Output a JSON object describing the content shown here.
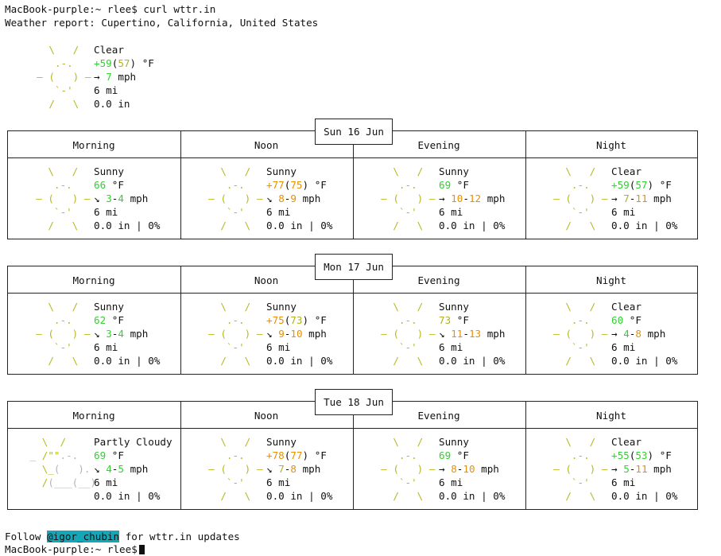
{
  "terminal": {
    "prompt": "MacBook-purple:~ rlee$",
    "command": "curl wttr.in",
    "report_header": "Weather report: Cupertino, California, United States"
  },
  "current": {
    "condition": "Clear",
    "temp_main": "+59",
    "temp_feels": "57",
    "temp_unit": "°F",
    "wind_dir": "→",
    "wind": "7",
    "wind_unit": "mph",
    "visibility": "6 mi",
    "precip": "0.0 in"
  },
  "period_labels": [
    "Morning",
    "Noon",
    "Evening",
    "Night"
  ],
  "forecast": [
    {
      "date": "Sun 16 Jun",
      "periods": [
        {
          "icon": "sunny",
          "condition": "Sunny",
          "temp_main": "66",
          "temp_feels": "",
          "temp_unit": "°F",
          "wind_dir": "↘",
          "wind_low": "3",
          "wind_high": "4",
          "wind_unit": "mph",
          "visibility": "6 mi",
          "precip": "0.0 in | 0%"
        },
        {
          "icon": "sunny",
          "condition": "Sunny",
          "temp_main": "+77",
          "temp_feels": "75",
          "temp_unit": "°F",
          "wind_dir": "↘",
          "wind_low": "8",
          "wind_high": "9",
          "wind_unit": "mph",
          "visibility": "6 mi",
          "precip": "0.0 in | 0%"
        },
        {
          "icon": "sunny",
          "condition": "Sunny",
          "temp_main": "69",
          "temp_feels": "",
          "temp_unit": "°F",
          "wind_dir": "→",
          "wind_low": "10",
          "wind_high": "12",
          "wind_unit": "mph",
          "visibility": "6 mi",
          "precip": "0.0 in | 0%"
        },
        {
          "icon": "clear",
          "condition": "Clear",
          "temp_main": "+59",
          "temp_feels": "57",
          "temp_unit": "°F",
          "wind_dir": "→",
          "wind_low": "7",
          "wind_high": "11",
          "wind_unit": "mph",
          "visibility": "6 mi",
          "precip": "0.0 in | 0%"
        }
      ]
    },
    {
      "date": "Mon 17 Jun",
      "periods": [
        {
          "icon": "sunny",
          "condition": "Sunny",
          "temp_main": "62",
          "temp_feels": "",
          "temp_unit": "°F",
          "wind_dir": "↘",
          "wind_low": "3",
          "wind_high": "4",
          "wind_unit": "mph",
          "visibility": "6 mi",
          "precip": "0.0 in | 0%"
        },
        {
          "icon": "sunny",
          "condition": "Sunny",
          "temp_main": "+75",
          "temp_feels": "73",
          "temp_unit": "°F",
          "wind_dir": "↘",
          "wind_low": "9",
          "wind_high": "10",
          "wind_unit": "mph",
          "visibility": "6 mi",
          "precip": "0.0 in | 0%"
        },
        {
          "icon": "sunny",
          "condition": "Sunny",
          "temp_main": "73",
          "temp_feels": "",
          "temp_unit": "°F",
          "wind_dir": "↘",
          "wind_low": "11",
          "wind_high": "13",
          "wind_unit": "mph",
          "visibility": "6 mi",
          "precip": "0.0 in | 0%"
        },
        {
          "icon": "clear",
          "condition": "Clear",
          "temp_main": "60",
          "temp_feels": "",
          "temp_unit": "°F",
          "wind_dir": "→",
          "wind_low": "4",
          "wind_high": "8",
          "wind_unit": "mph",
          "visibility": "6 mi",
          "precip": "0.0 in | 0%"
        }
      ]
    },
    {
      "date": "Tue 18 Jun",
      "periods": [
        {
          "icon": "partly",
          "condition": "Partly Cloudy",
          "temp_main": "69",
          "temp_feels": "",
          "temp_unit": "°F",
          "wind_dir": "↘",
          "wind_low": "4",
          "wind_high": "5",
          "wind_unit": "mph",
          "visibility": "6 mi",
          "precip": "0.0 in | 0%"
        },
        {
          "icon": "sunny",
          "condition": "Sunny",
          "temp_main": "+78",
          "temp_feels": "77",
          "temp_unit": "°F",
          "wind_dir": "↘",
          "wind_low": "7",
          "wind_high": "8",
          "wind_unit": "mph",
          "visibility": "6 mi",
          "precip": "0.0 in | 0%"
        },
        {
          "icon": "sunny",
          "condition": "Sunny",
          "temp_main": "69",
          "temp_feels": "",
          "temp_unit": "°F",
          "wind_dir": "→",
          "wind_low": "8",
          "wind_high": "10",
          "wind_unit": "mph",
          "visibility": "6 mi",
          "precip": "0.0 in | 0%"
        },
        {
          "icon": "clear",
          "condition": "Clear",
          "temp_main": "+55",
          "temp_feels": "53",
          "temp_unit": "°F",
          "wind_dir": "→",
          "wind_low": "5",
          "wind_high": "11",
          "wind_unit": "mph",
          "visibility": "6 mi",
          "precip": "0.0 in | 0%"
        }
      ]
    }
  ],
  "footer": {
    "follow_prefix": "Follow",
    "handle": "@igor_chubin",
    "follow_suffix": "for wttr.in updates",
    "prompt": "MacBook-purple:~ rlee$"
  },
  "colors": {
    "green": "#31d131",
    "olive": "#b0b020",
    "orange": "#e89000",
    "sun": "#b8b820",
    "cloud": "#b4b4b4",
    "handle_bg": "#15a7b7"
  }
}
